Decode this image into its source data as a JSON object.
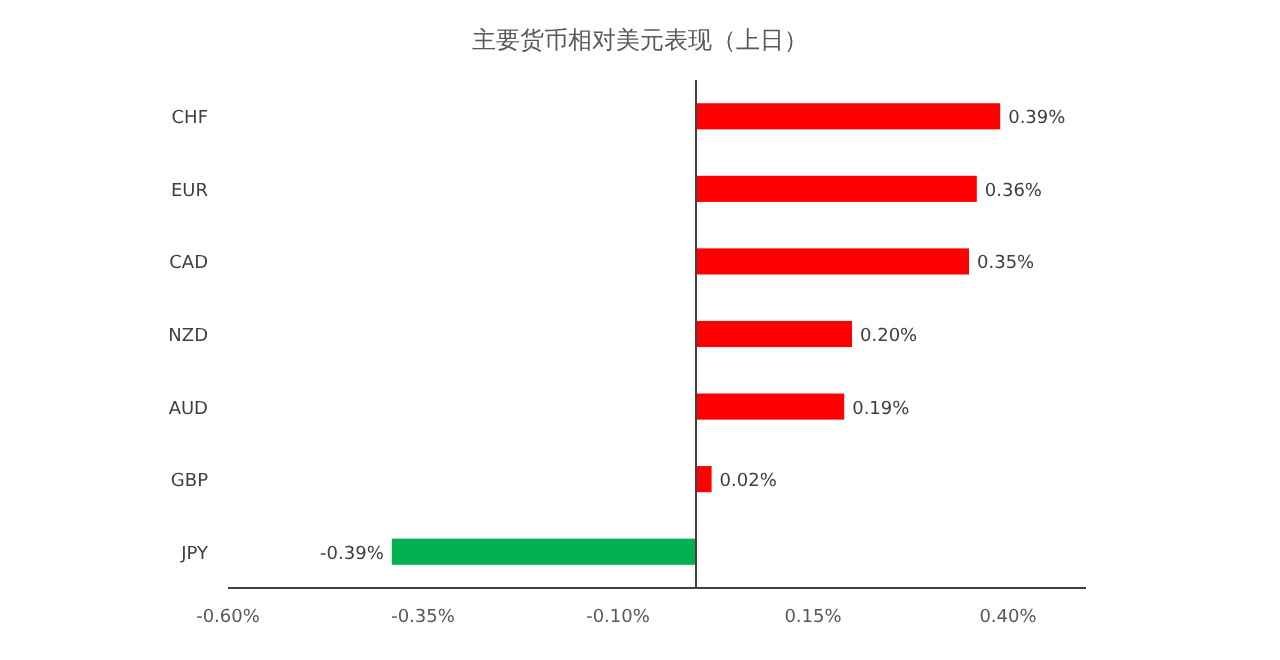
{
  "chart_data": {
    "type": "bar",
    "orientation": "horizontal",
    "title": "主要货币相对美元表现（上日）",
    "categories": [
      "CHF",
      "EUR",
      "CAD",
      "NZD",
      "AUD",
      "GBP",
      "JPY"
    ],
    "values": [
      0.39,
      0.36,
      0.35,
      0.2,
      0.19,
      0.02,
      -0.39
    ],
    "colors": [
      "#ff0000",
      "#ff0000",
      "#ff0000",
      "#ff0000",
      "#ff0000",
      "#ff0000",
      "#00b050"
    ],
    "value_labels": [
      "0.39%",
      "0.36%",
      "0.35%",
      "0.20%",
      "0.19%",
      "0.02%",
      "-0.39%"
    ],
    "xlim": [
      -0.6,
      0.5
    ],
    "xticks": [
      {
        "value": -0.6,
        "label": "-0.60%"
      },
      {
        "value": -0.35,
        "label": "-0.35%"
      },
      {
        "value": -0.1,
        "label": "-0.10%"
      },
      {
        "value": 0.15,
        "label": "0.15%"
      },
      {
        "value": 0.4,
        "label": "0.40%"
      }
    ],
    "grid": false
  }
}
